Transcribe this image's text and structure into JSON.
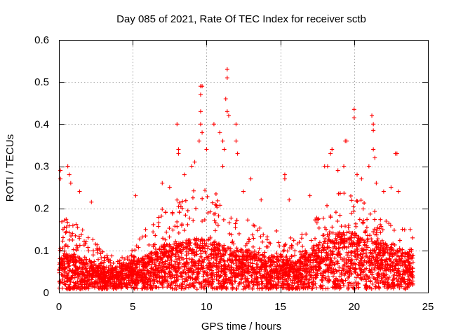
{
  "chart_data": {
    "type": "scatter",
    "title": "Day 085 of 2021, Rate Of TEC Index for receiver sctb",
    "xlabel": "GPS time / hours",
    "ylabel": "ROTI / TECUs",
    "xlim": [
      0,
      25
    ],
    "ylim": [
      0,
      0.6
    ],
    "xticks": [
      0,
      5,
      10,
      15,
      20,
      25
    ],
    "yticks": [
      0,
      0.1,
      0.2,
      0.3,
      0.4,
      0.5,
      0.6
    ],
    "xtick_labels": [
      "0",
      "5",
      "10",
      "15",
      "20",
      "25"
    ],
    "ytick_labels": [
      "0",
      "0.1",
      "0.2",
      "0.3",
      "0.4",
      "0.5",
      "0.6"
    ],
    "grid": true,
    "marker": "+",
    "color": "#ff0000",
    "data_x_range": [
      0,
      24
    ],
    "series": [
      {
        "name": "ROTI",
        "note": "dense scatter sampled over 0-24 h; background cloud generated from the envelope, notable outliers listed",
        "envelope": [
          {
            "x": 0.0,
            "typical": 0.06,
            "upper": 0.18
          },
          {
            "x": 1.0,
            "typical": 0.06,
            "upper": 0.16
          },
          {
            "x": 2.0,
            "typical": 0.05,
            "upper": 0.13
          },
          {
            "x": 3.0,
            "typical": 0.04,
            "upper": 0.09
          },
          {
            "x": 4.0,
            "typical": 0.04,
            "upper": 0.08
          },
          {
            "x": 5.0,
            "typical": 0.05,
            "upper": 0.1
          },
          {
            "x": 6.0,
            "typical": 0.06,
            "upper": 0.15
          },
          {
            "x": 7.0,
            "typical": 0.08,
            "upper": 0.2
          },
          {
            "x": 8.0,
            "typical": 0.08,
            "upper": 0.22
          },
          {
            "x": 9.0,
            "typical": 0.09,
            "upper": 0.24
          },
          {
            "x": 10.0,
            "typical": 0.09,
            "upper": 0.24
          },
          {
            "x": 11.0,
            "typical": 0.08,
            "upper": 0.22
          },
          {
            "x": 12.0,
            "typical": 0.07,
            "upper": 0.18
          },
          {
            "x": 13.0,
            "typical": 0.07,
            "upper": 0.17
          },
          {
            "x": 14.0,
            "typical": 0.06,
            "upper": 0.15
          },
          {
            "x": 15.0,
            "typical": 0.06,
            "upper": 0.14
          },
          {
            "x": 16.0,
            "typical": 0.05,
            "upper": 0.12
          },
          {
            "x": 17.0,
            "typical": 0.07,
            "upper": 0.15
          },
          {
            "x": 18.0,
            "typical": 0.09,
            "upper": 0.2
          },
          {
            "x": 19.0,
            "typical": 0.1,
            "upper": 0.23
          },
          {
            "x": 20.0,
            "typical": 0.1,
            "upper": 0.23
          },
          {
            "x": 21.0,
            "typical": 0.09,
            "upper": 0.2
          },
          {
            "x": 22.0,
            "typical": 0.08,
            "upper": 0.17
          },
          {
            "x": 23.0,
            "typical": 0.07,
            "upper": 0.15
          },
          {
            "x": 24.0,
            "typical": 0.06,
            "upper": 0.13
          }
        ],
        "outliers": [
          {
            "x": 0.1,
            "y": 0.29
          },
          {
            "x": 0.1,
            "y": 0.27
          },
          {
            "x": 0.6,
            "y": 0.3
          },
          {
            "x": 0.7,
            "y": 0.28
          },
          {
            "x": 0.8,
            "y": 0.26
          },
          {
            "x": 1.4,
            "y": 0.24
          },
          {
            "x": 2.2,
            "y": 0.215
          },
          {
            "x": 5.2,
            "y": 0.23
          },
          {
            "x": 7.0,
            "y": 0.26
          },
          {
            "x": 7.5,
            "y": 0.25
          },
          {
            "x": 8.0,
            "y": 0.4
          },
          {
            "x": 8.1,
            "y": 0.34
          },
          {
            "x": 8.1,
            "y": 0.33
          },
          {
            "x": 8.5,
            "y": 0.28
          },
          {
            "x": 9.0,
            "y": 0.3
          },
          {
            "x": 9.2,
            "y": 0.31
          },
          {
            "x": 9.5,
            "y": 0.36
          },
          {
            "x": 9.6,
            "y": 0.49
          },
          {
            "x": 9.7,
            "y": 0.49
          },
          {
            "x": 9.6,
            "y": 0.47
          },
          {
            "x": 9.6,
            "y": 0.43
          },
          {
            "x": 9.6,
            "y": 0.4
          },
          {
            "x": 9.7,
            "y": 0.38
          },
          {
            "x": 10.0,
            "y": 0.34
          },
          {
            "x": 10.5,
            "y": 0.4
          },
          {
            "x": 10.9,
            "y": 0.38
          },
          {
            "x": 11.1,
            "y": 0.36
          },
          {
            "x": 11.2,
            "y": 0.34
          },
          {
            "x": 11.3,
            "y": 0.46
          },
          {
            "x": 11.4,
            "y": 0.53
          },
          {
            "x": 11.4,
            "y": 0.51
          },
          {
            "x": 11.4,
            "y": 0.43
          },
          {
            "x": 11.5,
            "y": 0.42
          },
          {
            "x": 11.1,
            "y": 0.3
          },
          {
            "x": 12.0,
            "y": 0.4
          },
          {
            "x": 12.1,
            "y": 0.33
          },
          {
            "x": 12.0,
            "y": 0.36
          },
          {
            "x": 12.5,
            "y": 0.24
          },
          {
            "x": 13.0,
            "y": 0.27
          },
          {
            "x": 13.7,
            "y": 0.22
          },
          {
            "x": 15.3,
            "y": 0.28
          },
          {
            "x": 15.3,
            "y": 0.27
          },
          {
            "x": 15.6,
            "y": 0.22
          },
          {
            "x": 17.0,
            "y": 0.23
          },
          {
            "x": 18.0,
            "y": 0.3
          },
          {
            "x": 18.2,
            "y": 0.3
          },
          {
            "x": 18.4,
            "y": 0.33
          },
          {
            "x": 18.5,
            "y": 0.34
          },
          {
            "x": 18.9,
            "y": 0.29
          },
          {
            "x": 19.4,
            "y": 0.36
          },
          {
            "x": 19.5,
            "y": 0.36
          },
          {
            "x": 19.3,
            "y": 0.3
          },
          {
            "x": 20.0,
            "y": 0.435
          },
          {
            "x": 20.0,
            "y": 0.415
          },
          {
            "x": 20.2,
            "y": 0.28
          },
          {
            "x": 20.5,
            "y": 0.27
          },
          {
            "x": 21.0,
            "y": 0.3
          },
          {
            "x": 21.2,
            "y": 0.42
          },
          {
            "x": 21.3,
            "y": 0.4
          },
          {
            "x": 21.3,
            "y": 0.385
          },
          {
            "x": 21.3,
            "y": 0.34
          },
          {
            "x": 21.4,
            "y": 0.32
          },
          {
            "x": 21.5,
            "y": 0.26
          },
          {
            "x": 22.0,
            "y": 0.24
          },
          {
            "x": 22.5,
            "y": 0.25
          },
          {
            "x": 22.8,
            "y": 0.33
          },
          {
            "x": 22.9,
            "y": 0.33
          },
          {
            "x": 23.0,
            "y": 0.24
          },
          {
            "x": 23.8,
            "y": 0.15
          }
        ]
      }
    ]
  }
}
